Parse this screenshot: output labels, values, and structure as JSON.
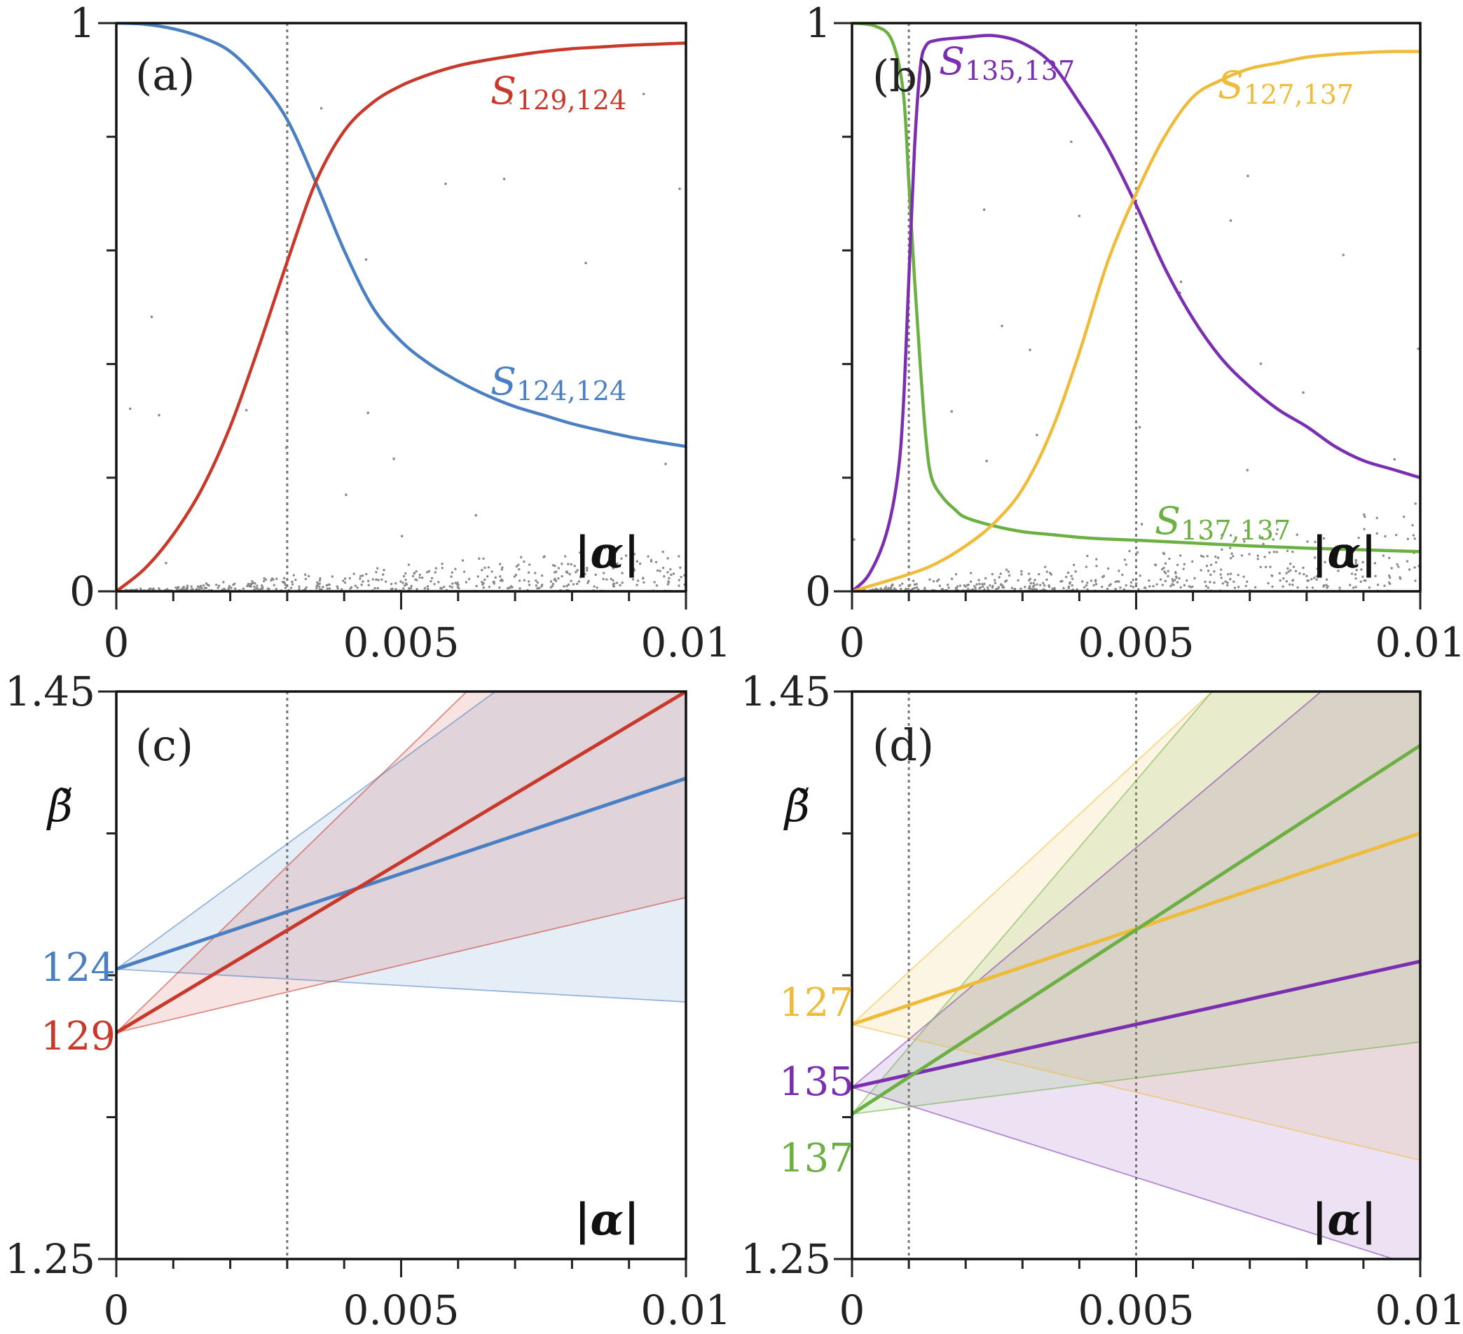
{
  "figure": {
    "panels": [
      "(a)",
      "(b)",
      "(c)",
      "(d)"
    ],
    "x_axis_label": "|α|",
    "y_axis_label_cd": "β̃"
  },
  "colors": {
    "red": "#c8392b",
    "blue": "#4a7fc1",
    "purple": "#7b2fb0",
    "yellow": "#efbb3a",
    "green": "#6cb043",
    "dots": "#8a8a8a",
    "vline": "#777777"
  },
  "chart_data": [
    {
      "panel": "(a)",
      "type": "line",
      "xlabel": "|α|",
      "ylabel": "",
      "xlim": [
        0,
        0.01
      ],
      "ylim": [
        0,
        1
      ],
      "xticks": [
        "0",
        "0.005",
        "0.01"
      ],
      "yticks": [
        "0",
        "1"
      ],
      "minor_xticks": 10,
      "minor_yticks": 5,
      "vertical_markers": [
        0.003
      ],
      "series": [
        {
          "name": "S_{124,124}",
          "label_main": "S",
          "label_sub": "124,124",
          "color": "#4a7fc1",
          "x": [
            0,
            0.0005,
            0.001,
            0.0015,
            0.002,
            0.0025,
            0.003,
            0.0035,
            0.004,
            0.0045,
            0.005,
            0.0055,
            0.006,
            0.0065,
            0.007,
            0.0075,
            0.008,
            0.0085,
            0.009,
            0.0095,
            0.01
          ],
          "y": [
            1.0,
            0.998,
            0.99,
            0.975,
            0.95,
            0.9,
            0.83,
            0.72,
            0.6,
            0.5,
            0.44,
            0.4,
            0.37,
            0.345,
            0.325,
            0.31,
            0.295,
            0.283,
            0.272,
            0.263,
            0.255
          ]
        },
        {
          "name": "S_{129,124}",
          "label_main": "S",
          "label_sub": "129,124",
          "color": "#c8392b",
          "x": [
            0,
            0.0005,
            0.001,
            0.0015,
            0.002,
            0.0025,
            0.003,
            0.0035,
            0.004,
            0.0045,
            0.005,
            0.0055,
            0.006,
            0.0065,
            0.007,
            0.0075,
            0.008,
            0.0085,
            0.009,
            0.0095,
            0.01
          ],
          "y": [
            0.0,
            0.04,
            0.1,
            0.18,
            0.29,
            0.43,
            0.58,
            0.72,
            0.81,
            0.86,
            0.89,
            0.91,
            0.925,
            0.935,
            0.943,
            0.95,
            0.955,
            0.958,
            0.961,
            0.963,
            0.965
          ]
        }
      ],
      "background_dots": "many faint grey dots clustered near S=0, rising slightly to ~0.07 at |α|=0.01"
    },
    {
      "panel": "(b)",
      "type": "line",
      "xlabel": "|α|",
      "ylabel": "",
      "xlim": [
        0,
        0.01
      ],
      "ylim": [
        0,
        1
      ],
      "xticks": [
        "0",
        "0.005",
        "0.01"
      ],
      "yticks": [
        "0",
        "1"
      ],
      "minor_xticks": 10,
      "minor_yticks": 5,
      "vertical_markers": [
        0.001,
        0.005
      ],
      "series": [
        {
          "name": "S_{137,137}",
          "label_main": "S",
          "label_sub": "137,137",
          "color": "#6cb043",
          "x": [
            0,
            0.0004,
            0.0007,
            0.0009,
            0.001,
            0.0011,
            0.0012,
            0.0013,
            0.0014,
            0.0016,
            0.0018,
            0.002,
            0.0025,
            0.003,
            0.0035,
            0.004,
            0.0045,
            0.005,
            0.006,
            0.007,
            0.008,
            0.009,
            0.01
          ],
          "y": [
            1.0,
            0.995,
            0.97,
            0.88,
            0.72,
            0.55,
            0.4,
            0.27,
            0.2,
            0.165,
            0.145,
            0.13,
            0.115,
            0.105,
            0.1,
            0.095,
            0.092,
            0.09,
            0.085,
            0.08,
            0.076,
            0.073,
            0.07
          ]
        },
        {
          "name": "S_{135,137}",
          "label_main": "S",
          "label_sub": "135,137",
          "color": "#7b2fb0",
          "x": [
            0,
            0.0003,
            0.0006,
            0.0008,
            0.0009,
            0.001,
            0.0011,
            0.0012,
            0.0013,
            0.0015,
            0.002,
            0.0025,
            0.003,
            0.0035,
            0.004,
            0.0045,
            0.005,
            0.0055,
            0.006,
            0.0065,
            0.007,
            0.0075,
            0.008,
            0.0085,
            0.009,
            0.0095,
            0.01
          ],
          "y": [
            0.0,
            0.03,
            0.1,
            0.2,
            0.32,
            0.55,
            0.78,
            0.92,
            0.96,
            0.97,
            0.975,
            0.978,
            0.965,
            0.93,
            0.86,
            0.78,
            0.68,
            0.57,
            0.48,
            0.41,
            0.36,
            0.32,
            0.29,
            0.255,
            0.23,
            0.215,
            0.2
          ]
        },
        {
          "name": "S_{127,137}",
          "label_main": "S",
          "label_sub": "127,137",
          "color": "#efbb3a",
          "x": [
            0,
            0.001,
            0.0015,
            0.002,
            0.0025,
            0.003,
            0.0035,
            0.004,
            0.0045,
            0.005,
            0.0055,
            0.006,
            0.0065,
            0.007,
            0.0075,
            0.008,
            0.0085,
            0.009,
            0.0095,
            0.01
          ],
          "y": [
            0.0,
            0.03,
            0.05,
            0.08,
            0.12,
            0.18,
            0.28,
            0.42,
            0.58,
            0.7,
            0.8,
            0.87,
            0.9,
            0.92,
            0.93,
            0.94,
            0.945,
            0.948,
            0.95,
            0.95
          ]
        }
      ],
      "background_dots": "dense grey dots near S=0 with scattered arcs up to ~0.15"
    },
    {
      "panel": "(c)",
      "type": "line",
      "xlabel": "|α|",
      "ylabel": "β̃",
      "xlim": [
        0,
        0.01
      ],
      "ylim": [
        1.25,
        1.45
      ],
      "xticks": [
        "0",
        "0.005",
        "0.01"
      ],
      "yticks": [
        "1.25",
        "1.45"
      ],
      "minor_xticks": 10,
      "minor_yticks": 4,
      "vertical_markers": [
        0.003
      ],
      "series": [
        {
          "name": "124",
          "color": "#4a7fc1",
          "beta0": 1.3522,
          "center_end": 1.4194,
          "upper_slope": 14.7,
          "lower_slope": -1.16
        },
        {
          "name": "129",
          "color": "#c8392b",
          "beta0": 1.3298,
          "center_end": 1.45,
          "upper_slope": 19.54,
          "lower_slope": 4.76
        }
      ],
      "level_labels": [
        "124",
        "129"
      ]
    },
    {
      "panel": "(d)",
      "type": "line",
      "xlabel": "|α|",
      "ylabel": "β̃",
      "xlim": [
        0,
        0.01
      ],
      "ylim": [
        1.25,
        1.45
      ],
      "xticks": [
        "0",
        "0.005",
        "0.01"
      ],
      "yticks": [
        "1.25",
        "1.45"
      ],
      "minor_xticks": 10,
      "minor_yticks": 4,
      "vertical_markers": [
        0.001,
        0.005
      ],
      "series": [
        {
          "name": "127",
          "color": "#efbb3a",
          "beta0": 1.3327,
          "center_end": 1.4001,
          "upper_slope": 18.5,
          "lower_slope": -4.79
        },
        {
          "name": "135",
          "color": "#7b2fb0",
          "beta0": 1.3105,
          "center_end": 1.3549,
          "upper_slope": 16.9,
          "lower_slope": -6.35
        },
        {
          "name": "137",
          "color": "#6cb043",
          "beta0": 1.3011,
          "center_end": 1.431,
          "upper_slope": 23.5,
          "lower_slope": 2.54
        }
      ],
      "level_labels": [
        "127",
        "135",
        "137"
      ]
    }
  ]
}
